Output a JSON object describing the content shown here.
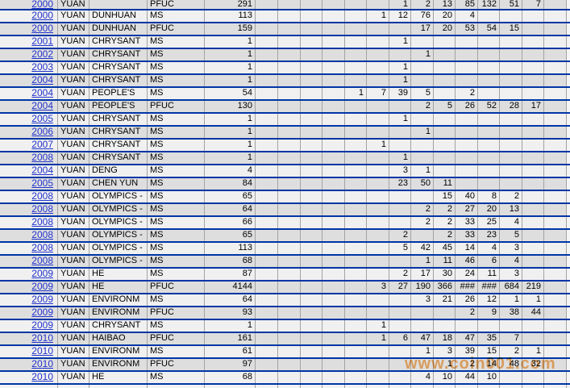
{
  "watermark": {
    "text": "www.coin001.com"
  },
  "colors": {
    "separator": "#0036A5",
    "gridline": "#A3A3A3",
    "row_dark": "#DEDEDE",
    "row_light": "#F0F0F0",
    "year_link": "#2233CC",
    "watermark_orange": "#F79632"
  },
  "table": {
    "rows": [
      {
        "year": "2000",
        "issuer": "YUAN",
        "series": "",
        "grade": "PFUC",
        "total": "291",
        "values": [
          "",
          "",
          "",
          "",
          "",
          "",
          "1",
          "2",
          "13",
          "85",
          "132",
          "51",
          "7",
          ""
        ]
      },
      {
        "year": "2000",
        "issuer": "YUAN",
        "series": "DUNHUAN",
        "grade": "MS",
        "total": "113",
        "values": [
          "",
          "",
          "",
          "",
          "",
          "1",
          "12",
          "76",
          "20",
          "4",
          "",
          "",
          "",
          ""
        ]
      },
      {
        "year": "2000",
        "issuer": "YUAN",
        "series": "DUNHUAN",
        "grade": "PFUC",
        "total": "159",
        "values": [
          "",
          "",
          "",
          "",
          "",
          "",
          "",
          "17",
          "20",
          "53",
          "54",
          "15",
          "",
          ""
        ]
      },
      {
        "year": "2001",
        "issuer": "YUAN",
        "series": "CHRYSANT",
        "grade": "MS",
        "total": "1",
        "values": [
          "",
          "",
          "",
          "",
          "",
          "",
          "1",
          "",
          "",
          "",
          "",
          "",
          "",
          ""
        ]
      },
      {
        "year": "2002",
        "issuer": "YUAN",
        "series": "CHRYSANT",
        "grade": "MS",
        "total": "1",
        "values": [
          "",
          "",
          "",
          "",
          "",
          "",
          "",
          "1",
          "",
          "",
          "",
          "",
          "",
          ""
        ]
      },
      {
        "year": "2003",
        "issuer": "YUAN",
        "series": "CHRYSANT",
        "grade": "MS",
        "total": "1",
        "values": [
          "",
          "",
          "",
          "",
          "",
          "",
          "1",
          "",
          "",
          "",
          "",
          "",
          "",
          ""
        ]
      },
      {
        "year": "2004",
        "issuer": "YUAN",
        "series": "CHRYSANT",
        "grade": "MS",
        "total": "1",
        "values": [
          "",
          "",
          "",
          "",
          "",
          "",
          "1",
          "",
          "",
          "",
          "",
          "",
          "",
          ""
        ]
      },
      {
        "year": "2004",
        "issuer": "YUAN",
        "series": "PEOPLE'S",
        "grade": "MS",
        "total": "54",
        "values": [
          "",
          "",
          "",
          "",
          "1",
          "7",
          "39",
          "5",
          "",
          "2",
          "",
          "",
          "",
          ""
        ]
      },
      {
        "year": "2004",
        "issuer": "YUAN",
        "series": "PEOPLE'S",
        "grade": "PFUC",
        "total": "130",
        "values": [
          "",
          "",
          "",
          "",
          "",
          "",
          "",
          "2",
          "5",
          "26",
          "52",
          "28",
          "17",
          ""
        ]
      },
      {
        "year": "2005",
        "issuer": "YUAN",
        "series": "CHRYSANT",
        "grade": "MS",
        "total": "1",
        "values": [
          "",
          "",
          "",
          "",
          "",
          "",
          "1",
          "",
          "",
          "",
          "",
          "",
          "",
          ""
        ]
      },
      {
        "year": "2006",
        "issuer": "YUAN",
        "series": "CHRYSANT",
        "grade": "MS",
        "total": "1",
        "values": [
          "",
          "",
          "",
          "",
          "",
          "",
          "",
          "1",
          "",
          "",
          "",
          "",
          "",
          ""
        ]
      },
      {
        "year": "2007",
        "issuer": "YUAN",
        "series": "CHRYSANT",
        "grade": "MS",
        "total": "1",
        "values": [
          "",
          "",
          "",
          "",
          "",
          "1",
          "",
          "",
          "",
          "",
          "",
          "",
          "",
          ""
        ]
      },
      {
        "year": "2008",
        "issuer": "YUAN",
        "series": "CHRYSANT",
        "grade": "MS",
        "total": "1",
        "values": [
          "",
          "",
          "",
          "",
          "",
          "",
          "1",
          "",
          "",
          "",
          "",
          "",
          "",
          ""
        ]
      },
      {
        "year": "2004",
        "issuer": "YUAN",
        "series": "DENG",
        "grade": "MS",
        "total": "4",
        "values": [
          "",
          "",
          "",
          "",
          "",
          "",
          "3",
          "1",
          "",
          "",
          "",
          "",
          "",
          ""
        ]
      },
      {
        "year": "2005",
        "issuer": "YUAN",
        "series": "CHEN YUN",
        "grade": "MS",
        "total": "84",
        "values": [
          "",
          "",
          "",
          "",
          "",
          "",
          "23",
          "50",
          "11",
          "",
          "",
          "",
          "",
          ""
        ]
      },
      {
        "year": "2008",
        "issuer": "YUAN",
        "series": "OLYMPICS -",
        "grade": "MS",
        "total": "65",
        "values": [
          "",
          "",
          "",
          "",
          "",
          "",
          "",
          "",
          "15",
          "40",
          "8",
          "2",
          "",
          ""
        ]
      },
      {
        "year": "2008",
        "issuer": "YUAN",
        "series": "OLYMPICS -",
        "grade": "MS",
        "total": "64",
        "values": [
          "",
          "",
          "",
          "",
          "",
          "",
          "",
          "2",
          "2",
          "27",
          "20",
          "13",
          "",
          ""
        ]
      },
      {
        "year": "2008",
        "issuer": "YUAN",
        "series": "OLYMPICS -",
        "grade": "MS",
        "total": "66",
        "values": [
          "",
          "",
          "",
          "",
          "",
          "",
          "",
          "2",
          "2",
          "33",
          "25",
          "4",
          "",
          ""
        ]
      },
      {
        "year": "2008",
        "issuer": "YUAN",
        "series": "OLYMPICS -",
        "grade": "MS",
        "total": "65",
        "values": [
          "",
          "",
          "",
          "",
          "",
          "",
          "2",
          "",
          "2",
          "33",
          "23",
          "5",
          "",
          ""
        ]
      },
      {
        "year": "2008",
        "issuer": "YUAN",
        "series": "OLYMPICS -",
        "grade": "MS",
        "total": "113",
        "values": [
          "",
          "",
          "",
          "",
          "",
          "",
          "5",
          "42",
          "45",
          "14",
          "4",
          "3",
          "",
          ""
        ]
      },
      {
        "year": "2008",
        "issuer": "YUAN",
        "series": "OLYMPICS -",
        "grade": "MS",
        "total": "68",
        "values": [
          "",
          "",
          "",
          "",
          "",
          "",
          "",
          "1",
          "11",
          "46",
          "6",
          "4",
          "",
          ""
        ]
      },
      {
        "year": "2009",
        "issuer": "YUAN",
        "series": "HE",
        "grade": "MS",
        "total": "87",
        "values": [
          "",
          "",
          "",
          "",
          "",
          "",
          "2",
          "17",
          "30",
          "24",
          "11",
          "3",
          "",
          ""
        ]
      },
      {
        "year": "2009",
        "issuer": "YUAN",
        "series": "HE",
        "grade": "PFUC",
        "total": "4144",
        "values": [
          "",
          "",
          "",
          "",
          "",
          "3",
          "27",
          "190",
          "366",
          "###",
          "###",
          "684",
          "219",
          ""
        ]
      },
      {
        "year": "2009",
        "issuer": "YUAN",
        "series": "ENVIRONM",
        "grade": "MS",
        "total": "64",
        "values": [
          "",
          "",
          "",
          "",
          "",
          "",
          "",
          "3",
          "21",
          "26",
          "12",
          "1",
          "1",
          ""
        ]
      },
      {
        "year": "2009",
        "issuer": "YUAN",
        "series": "ENVIRONM",
        "grade": "PFUC",
        "total": "93",
        "values": [
          "",
          "",
          "",
          "",
          "",
          "",
          "",
          "",
          "",
          "2",
          "9",
          "38",
          "44",
          ""
        ]
      },
      {
        "year": "2009",
        "issuer": "YUAN",
        "series": "CHRYSANT",
        "grade": "MS",
        "total": "1",
        "values": [
          "",
          "",
          "",
          "",
          "",
          "1",
          "",
          "",
          "",
          "",
          "",
          "",
          "",
          ""
        ]
      },
      {
        "year": "2010",
        "issuer": "YUAN",
        "series": "HAIBAO",
        "grade": "PFUC",
        "total": "161",
        "values": [
          "",
          "",
          "",
          "",
          "",
          "1",
          "6",
          "47",
          "18",
          "47",
          "35",
          "7",
          "",
          ""
        ]
      },
      {
        "year": "2010",
        "issuer": "YUAN",
        "series": "ENVIRONM",
        "grade": "MS",
        "total": "61",
        "values": [
          "",
          "",
          "",
          "",
          "",
          "",
          "",
          "1",
          "3",
          "39",
          "15",
          "2",
          "1",
          ""
        ]
      },
      {
        "year": "2010",
        "issuer": "YUAN",
        "series": "ENVIRONM",
        "grade": "PFUC",
        "total": "97",
        "values": [
          "",
          "",
          "",
          "",
          "",
          "",
          "",
          "",
          "1",
          "2",
          "14",
          "48",
          "32",
          ""
        ]
      },
      {
        "year": "2010",
        "issuer": "YUAN",
        "series": "HE",
        "grade": "MS",
        "total": "68",
        "values": [
          "",
          "",
          "",
          "",
          "",
          "",
          "",
          "4",
          "10",
          "44",
          "10",
          "",
          "",
          ""
        ]
      }
    ]
  }
}
